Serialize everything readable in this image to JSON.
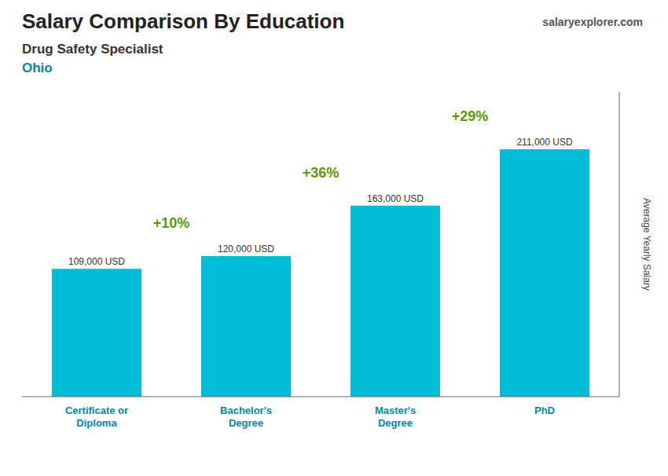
{
  "chart_data": {
    "type": "bar",
    "title": "Salary Comparison By Education",
    "subtitle": [
      "Drug Safety Specialist",
      "Ohio"
    ],
    "watermark": "salaryexplorer.com",
    "ylabel": "Average Yearly Salary",
    "categories": [
      "Certificate or\nDiploma",
      "Bachelor's\nDegree",
      "Master's\nDegree",
      "PhD"
    ],
    "values": [
      109000,
      120000,
      163000,
      211000
    ],
    "value_labels": [
      "109,000 USD",
      "120,000 USD",
      "163,000 USD",
      "211,000 USD"
    ],
    "data_labels": true,
    "annotations": [
      "+10%",
      "+36%",
      "+29%"
    ],
    "color": "#00bcd4",
    "ylim": [
      0,
      260000
    ],
    "tick_labels": "x",
    "grid": false
  }
}
